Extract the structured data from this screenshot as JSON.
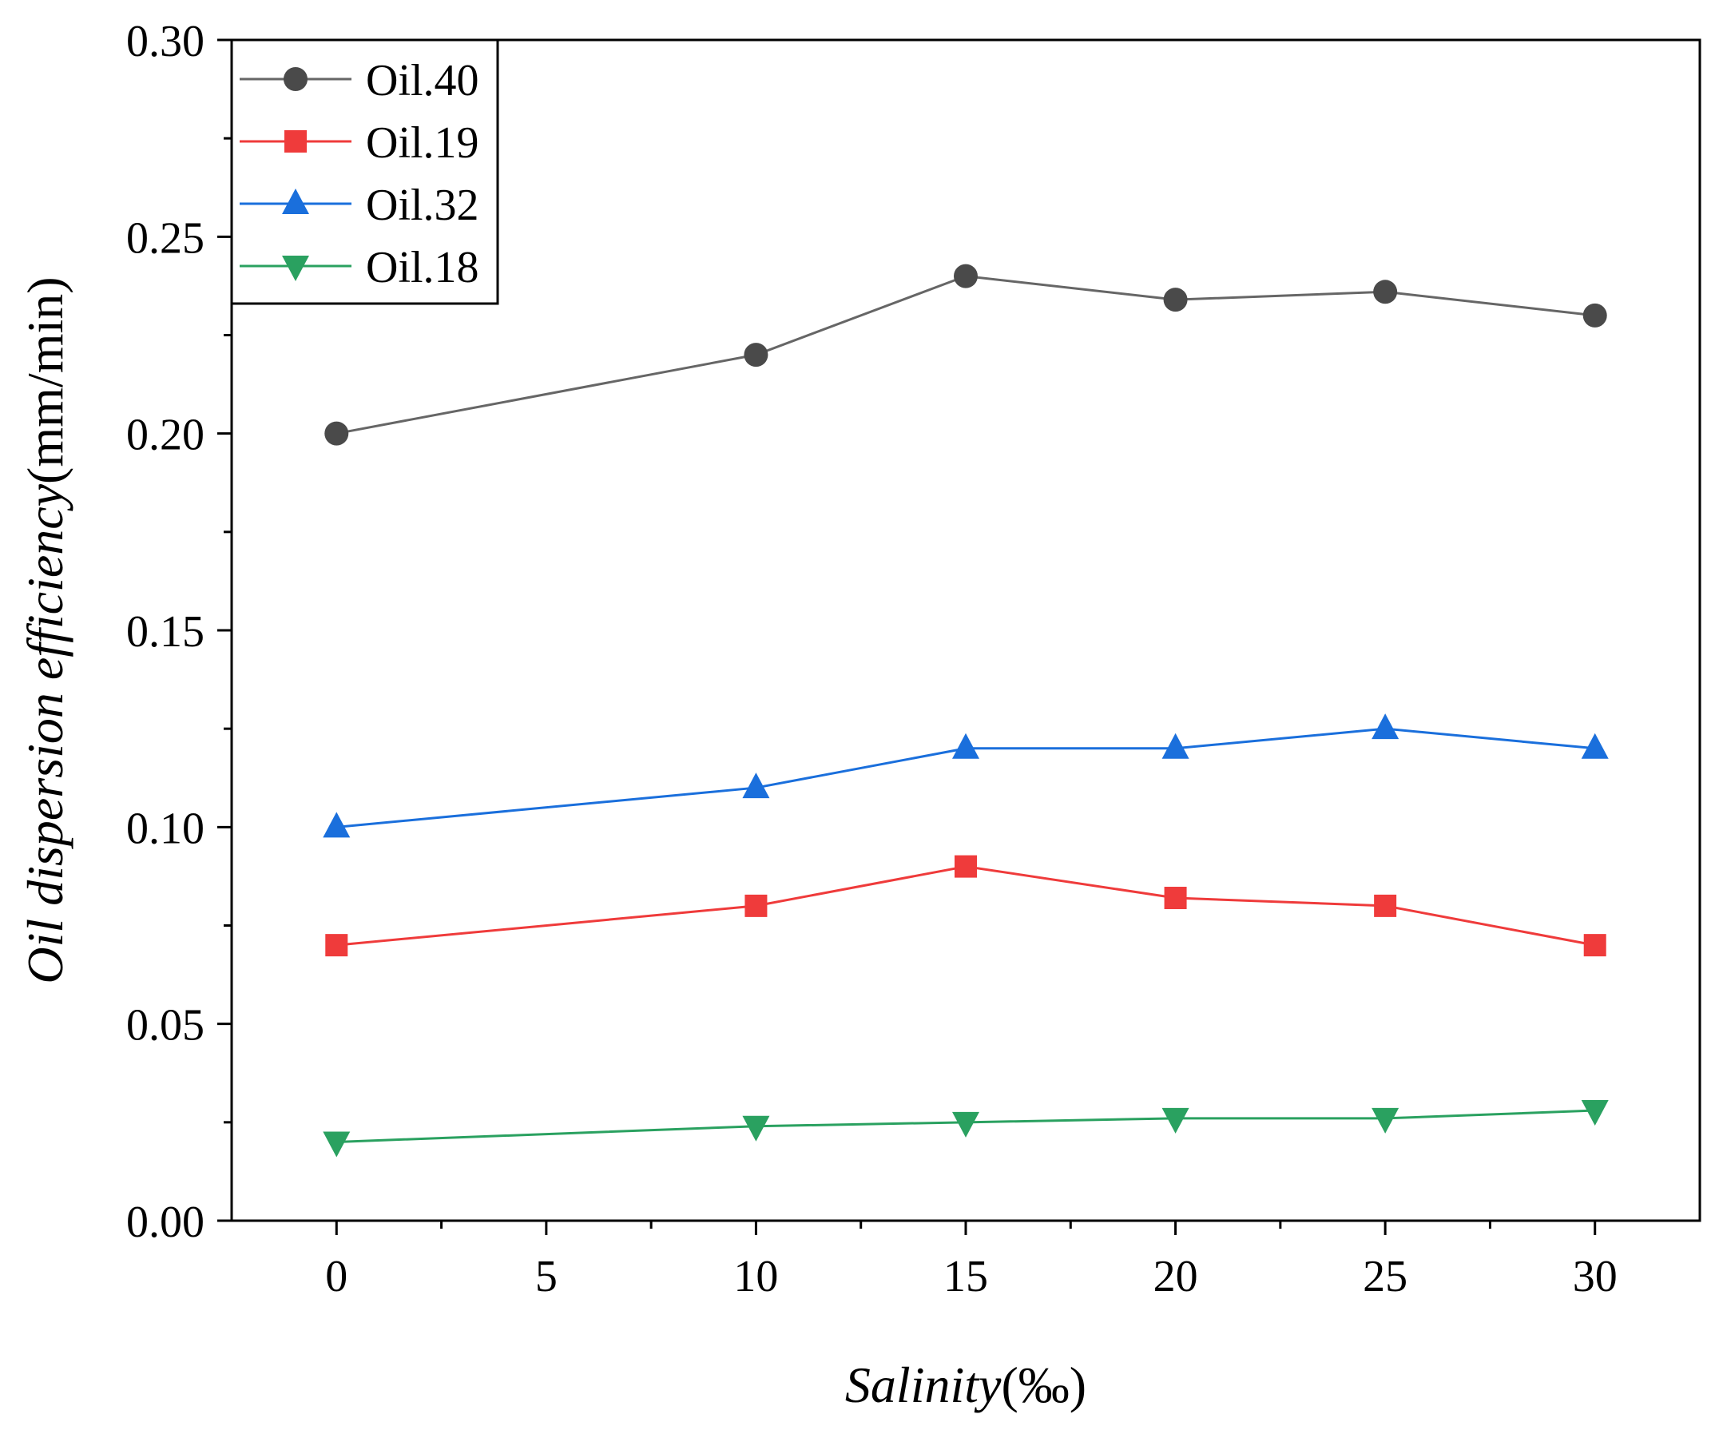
{
  "chart_data": {
    "type": "line",
    "title": "",
    "xlabel": {
      "italic": "Salinity",
      "unit": "(‰)"
    },
    "ylabel": {
      "italic": "Oil dispersion efficiency",
      "unit": "(mm/min)"
    },
    "xlim": [
      -2.5,
      32.5
    ],
    "ylim": [
      0,
      0.3
    ],
    "x_ticks": [
      0,
      5,
      10,
      15,
      20,
      25,
      30
    ],
    "x_tick_labels": [
      "0",
      "5",
      "10",
      "15",
      "20",
      "25",
      "30"
    ],
    "x_minor_ticks": [
      2.5,
      7.5,
      12.5,
      17.5,
      22.5,
      27.5
    ],
    "y_ticks": [
      0.0,
      0.05,
      0.1,
      0.15,
      0.2,
      0.25,
      0.3
    ],
    "y_tick_labels": [
      "0.00",
      "0.05",
      "0.10",
      "0.15",
      "0.20",
      "0.25",
      "0.30"
    ],
    "y_minor_ticks": [
      0.025,
      0.075,
      0.125,
      0.175,
      0.225,
      0.275
    ],
    "grid": false,
    "legend_position": "top-left",
    "x": [
      0,
      10,
      15,
      20,
      25,
      30
    ],
    "series": [
      {
        "name": "Oil.40",
        "marker": "circle",
        "color": "#4a4a4a",
        "line_color": "#666666",
        "values": [
          0.2,
          0.22,
          0.24,
          0.234,
          0.236,
          0.23
        ]
      },
      {
        "name": "Oil.19",
        "marker": "square",
        "color": "#ef3b3b",
        "line_color": "#ef3b3b",
        "values": [
          0.07,
          0.08,
          0.09,
          0.082,
          0.08,
          0.07
        ]
      },
      {
        "name": "Oil.32",
        "marker": "triangle-up",
        "color": "#1a6fdc",
        "line_color": "#1a6fdc",
        "values": [
          0.1,
          0.11,
          0.12,
          0.12,
          0.125,
          0.12
        ]
      },
      {
        "name": "Oil.18",
        "marker": "triangle-down",
        "color": "#2aa160",
        "line_color": "#2aa160",
        "values": [
          0.02,
          0.024,
          0.025,
          0.026,
          0.026,
          0.028
        ]
      }
    ]
  }
}
